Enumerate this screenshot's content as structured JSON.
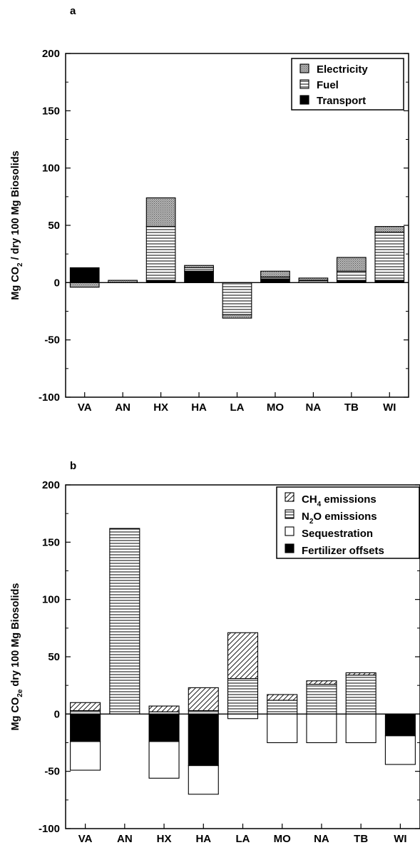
{
  "chart_data": [
    {
      "type": "bar",
      "stacked": true,
      "panel_label": "a",
      "categories": [
        "VA",
        "AN",
        "HX",
        "HA",
        "LA",
        "MO",
        "NA",
        "TB",
        "WI"
      ],
      "ylabel": "Mg CO / dry 100 Mg Biosolids",
      "ylabel_main": "Mg CO",
      "ylabel_sub": "2",
      "ylabel_rest": " / dry 100 Mg Biosolids",
      "ylim": [
        -100,
        200
      ],
      "yticks": [
        -100,
        -50,
        0,
        50,
        100,
        150,
        200
      ],
      "grid": false,
      "legend_position": "top-right",
      "series": [
        {
          "name": "Transport",
          "pattern": "solid-black",
          "values": [
            13,
            0,
            2,
            10,
            0,
            3,
            0,
            2,
            2
          ]
        },
        {
          "name": "Fuel",
          "pattern": "horizontal-lines",
          "values": [
            0,
            0,
            47,
            3,
            -28,
            2,
            2,
            8,
            42
          ]
        },
        {
          "name": "Electricity",
          "pattern": "dotted-gray",
          "values": [
            -4,
            2,
            25,
            2,
            -3,
            5,
            2,
            12,
            5
          ]
        }
      ]
    },
    {
      "type": "bar",
      "stacked": true,
      "panel_label": "b",
      "categories": [
        "VA",
        "AN",
        "HX",
        "HA",
        "LA",
        "MO",
        "NA",
        "TB",
        "WI"
      ],
      "ylabel": "Mg CO dry 100 Mg Biosolids",
      "ylabel_main": "Mg CO",
      "ylabel_sub": "2e",
      "ylabel_rest": " dry 100 Mg Biosolids",
      "ylim": [
        -100,
        200
      ],
      "yticks": [
        -100,
        -50,
        0,
        50,
        100,
        150,
        200
      ],
      "grid": false,
      "legend_position": "top-right",
      "series": [
        {
          "name": "Fertilizer offsets",
          "pattern": "solid-black",
          "values": [
            -24,
            0,
            -24,
            -45,
            0,
            0,
            0,
            0,
            -19
          ]
        },
        {
          "name": "Sequestration",
          "pattern": "white",
          "values": [
            -25,
            0,
            -32,
            -25,
            -4,
            -25,
            -25,
            -25,
            -25
          ]
        },
        {
          "name": "N2O emissions",
          "pattern": "horizontal-lines",
          "values": [
            3,
            162,
            2,
            3,
            31,
            12,
            26,
            34,
            0
          ]
        },
        {
          "name": "CH4 emissions",
          "pattern": "diagonal-lines",
          "values": [
            7,
            0,
            5,
            20,
            40,
            5,
            3,
            2,
            0
          ]
        }
      ],
      "legend": [
        {
          "main": "CH",
          "sub": "4",
          "rest": " emissions",
          "pattern": "diagonal-lines"
        },
        {
          "main": "N",
          "sub": "2",
          "rest": "O emissions",
          "pattern": "horizontal-lines"
        },
        {
          "main": "Sequestration",
          "sub": "",
          "rest": "",
          "pattern": "white"
        },
        {
          "main": "Fertilizer offsets",
          "sub": "",
          "rest": "",
          "pattern": "solid-black"
        }
      ]
    }
  ]
}
